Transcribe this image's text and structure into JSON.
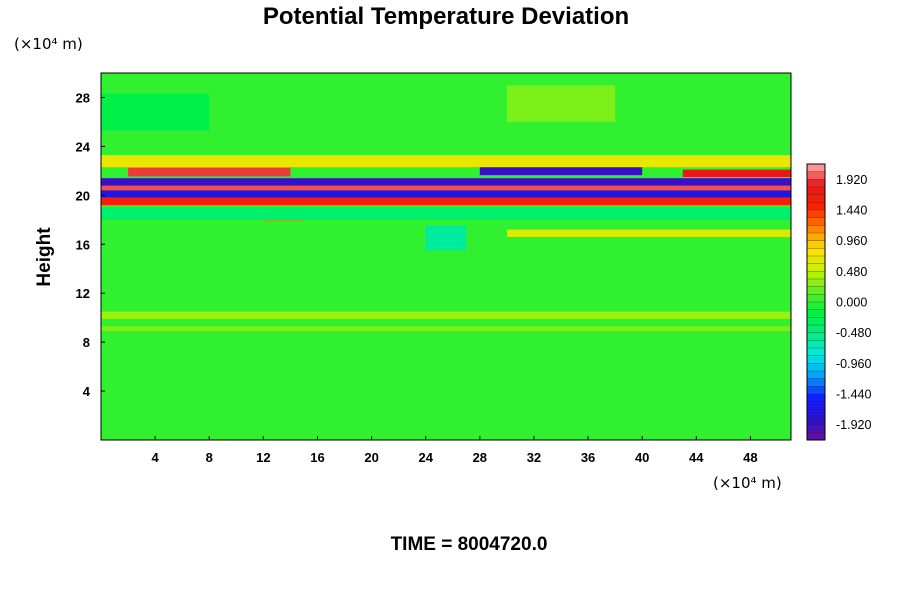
{
  "chart_data": {
    "type": "heatmap",
    "title": "Potential Temperature Deviation",
    "ylabel": "Height",
    "xlabel": "",
    "x_unit": "(×10⁴ m)",
    "y_unit": "(×10⁴ m)",
    "xlim": [
      0,
      51
    ],
    "ylim": [
      0,
      30
    ],
    "x_ticks": [
      4,
      8,
      12,
      16,
      20,
      24,
      28,
      32,
      36,
      40,
      44,
      48
    ],
    "y_ticks": [
      4,
      8,
      12,
      16,
      20,
      24,
      28
    ],
    "x_tick_labels": [
      "4",
      "8",
      "12",
      "16",
      "20",
      "24",
      "28",
      "32",
      "36",
      "40",
      "44",
      "48"
    ],
    "y_tick_labels": [
      "4",
      "8",
      "12",
      "16",
      "20",
      "24",
      "28"
    ],
    "colorbar": {
      "min": -2.16,
      "max": 2.16,
      "levels": 36,
      "tick_values": [
        1.92,
        1.44,
        0.96,
        0.48,
        0.0,
        -0.48,
        -0.96,
        -1.44,
        -1.92
      ],
      "tick_labels": [
        "1.920",
        "1.440",
        "0.960",
        "0.480",
        "0.000",
        "-0.480",
        "-0.960",
        "-1.440",
        "-1.920"
      ],
      "colormap": [
        "#6a0fa0",
        "#2a10d0",
        "#1020ff",
        "#00a0ff",
        "#00e8e0",
        "#00ee80",
        "#00f040",
        "#60f020",
        "#c8f000",
        "#ffe000",
        "#ff8000",
        "#ff2000",
        "#e81818",
        "#ffb0b0"
      ]
    },
    "background_value": 0.0,
    "features": [
      {
        "x_range": [
          0,
          51
        ],
        "y_center": 20.6,
        "half_width": 0.45,
        "value": 1.95
      },
      {
        "x_range": [
          0,
          51
        ],
        "y_center": 21.1,
        "half_width": 0.3,
        "value": -1.9
      },
      {
        "x_range": [
          0,
          51
        ],
        "y_center": 20.1,
        "half_width": 0.3,
        "value": -1.7
      },
      {
        "x_range": [
          0,
          51
        ],
        "y_center": 19.5,
        "half_width": 0.3,
        "value": 1.6
      },
      {
        "x_range": [
          2,
          14
        ],
        "y_center": 21.9,
        "half_width": 0.35,
        "value": 1.9
      },
      {
        "x_range": [
          28,
          40
        ],
        "y_center": 22.0,
        "half_width": 0.35,
        "value": -1.9
      },
      {
        "x_range": [
          43,
          51
        ],
        "y_center": 21.8,
        "half_width": 0.3,
        "value": 1.8
      },
      {
        "x_range": [
          12,
          15
        ],
        "y_center": 18.3,
        "half_width": 0.35,
        "value": 1.2
      },
      {
        "x_range": [
          0,
          51
        ],
        "y_center": 22.8,
        "half_width": 0.5,
        "value": 0.7
      },
      {
        "x_range": [
          0,
          51
        ],
        "y_center": 18.5,
        "half_width": 0.5,
        "value": -0.4
      },
      {
        "x_range": [
          24,
          27
        ],
        "y_center": 16.5,
        "half_width": 1.0,
        "value": -0.6
      },
      {
        "x_range": [
          30,
          51
        ],
        "y_center": 16.9,
        "half_width": 0.3,
        "value": 0.6
      },
      {
        "x_range": [
          0,
          51
        ],
        "y_center": 10.2,
        "half_width": 0.3,
        "value": 0.35
      },
      {
        "x_range": [
          0,
          51
        ],
        "y_center": 9.1,
        "half_width": 0.2,
        "value": 0.25
      },
      {
        "x_range": [
          30,
          38
        ],
        "y_center": 27.5,
        "half_width": 1.5,
        "value": 0.25
      },
      {
        "x_range": [
          0,
          8
        ],
        "y_center": 26.8,
        "half_width": 1.5,
        "value": -0.2
      }
    ]
  },
  "footer": {
    "time_label": "TIME = 8004720.0"
  }
}
